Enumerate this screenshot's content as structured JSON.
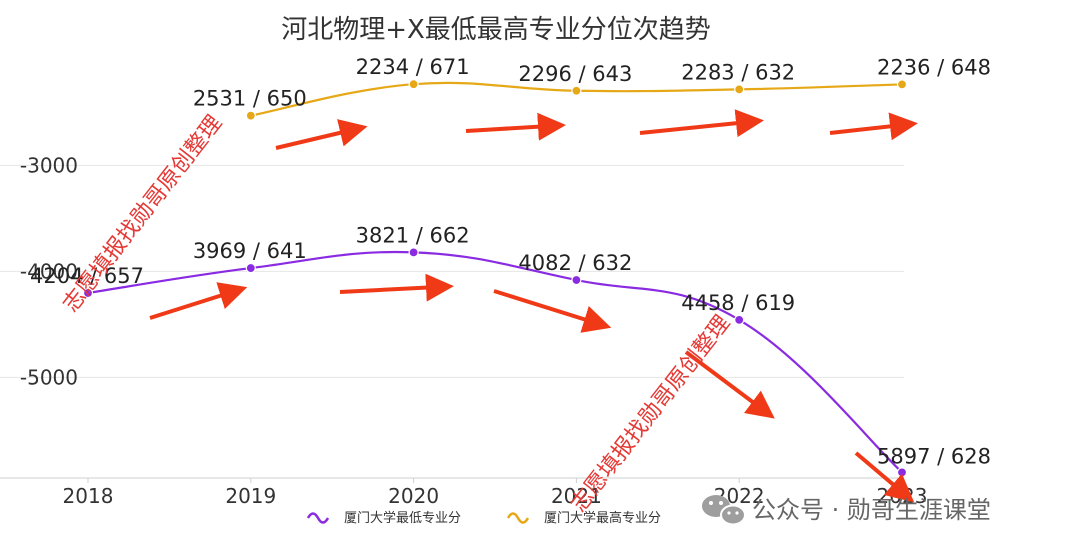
{
  "chart_data": {
    "type": "line",
    "title": "河北物理+X最低最高专业分位次趋势",
    "categories": [
      "2018",
      "2019",
      "2020",
      "2021",
      "2022",
      "2023"
    ],
    "y_ticks": [
      -3000,
      -4000,
      -5000
    ],
    "ylim": [
      -5950,
      -2100
    ],
    "series": [
      {
        "name": "厦门大学最低专业分",
        "color": "#8a2be2",
        "values": [
          -4204,
          -3969,
          -3821,
          -4082,
          -4458,
          -5897
        ],
        "labels": [
          "4204 / 657",
          "3969 / 641",
          "3821 / 662",
          "4082 / 632",
          "4458 / 619",
          "5897 / 628"
        ]
      },
      {
        "name": "厦门大学最高专业分",
        "color": "#e6a817",
        "start_index": 1,
        "values": [
          null,
          -2531,
          -2234,
          -2296,
          -2283,
          -2236
        ],
        "labels": [
          "",
          "2531 / 650",
          "2234 / 671",
          "2296 / 643",
          "2283 / 632",
          "2236 / 648"
        ]
      }
    ],
    "legend_position": "bottom-center"
  },
  "watermark": {
    "text": "志愿填报找勋哥原创整理",
    "color": "#e53935"
  },
  "footer": {
    "text": "公众号 · 勋哥生涯课堂",
    "icon": "wechat-icon"
  },
  "colors": {
    "arrow": "#f03a17",
    "grid": "#e6e6e6",
    "axis": "#333333"
  }
}
